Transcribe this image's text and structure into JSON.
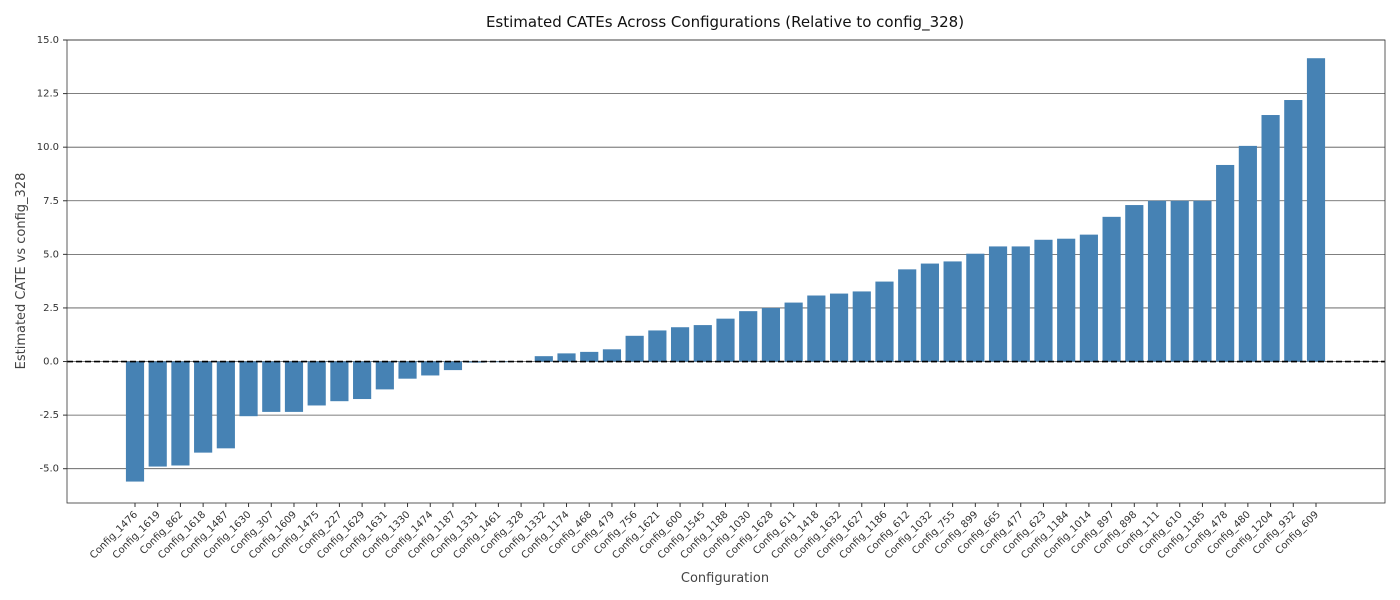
{
  "chart_data": {
    "type": "bar",
    "title": "Estimated CATEs Across Configurations (Relative to config_328)",
    "xlabel": "Configuration",
    "ylabel": "Estimated CATE vs config_328",
    "color": "#4682b4",
    "grid": true,
    "reference_line": 0,
    "ylim": [
      -6.6,
      15.0
    ],
    "yticks": [
      {
        "value": -5,
        "label": "-5.0"
      },
      {
        "value": -2.5,
        "label": "-2.5"
      },
      {
        "value": 0,
        "label": "0.0"
      },
      {
        "value": 2.5,
        "label": "2.5"
      },
      {
        "value": 5,
        "label": "5.0"
      },
      {
        "value": 7.5,
        "label": "7.5"
      },
      {
        "value": 10,
        "label": "10.0"
      },
      {
        "value": 12.5,
        "label": "12.5"
      },
      {
        "value": 15,
        "label": "15.0"
      }
    ],
    "categories": [
      "Config_1476",
      "Config_1619",
      "Config_862",
      "Config_1618",
      "Config_1487",
      "Config_1630",
      "Config_307",
      "Config_1609",
      "Config_1475",
      "Config_227",
      "Config_1629",
      "Config_1631",
      "Config_1330",
      "Config_1474",
      "Config_1187",
      "Config_1331",
      "Config_1461",
      "Config_328",
      "Config_1332",
      "Config_1174",
      "Config_468",
      "Config_479",
      "Config_756",
      "Config_1621",
      "Config_600",
      "Config_1545",
      "Config_1188",
      "Config_1030",
      "Config_1628",
      "Config_611",
      "Config_1418",
      "Config_1632",
      "Config_1627",
      "Config_1186",
      "Config_612",
      "Config_1032",
      "Config_755",
      "Config_899",
      "Config_665",
      "Config_477",
      "Config_623",
      "Config_1184",
      "Config_1014",
      "Config_897",
      "Config_898",
      "Config_111",
      "Config_610",
      "Config_1185",
      "Config_478",
      "Config_480",
      "Config_1204",
      "Config_932",
      "Config_609"
    ],
    "values": [
      -5.6,
      -4.9,
      -4.85,
      -4.25,
      -4.05,
      -2.55,
      -2.35,
      -2.35,
      -2.05,
      -1.85,
      -1.75,
      -1.3,
      -0.8,
      -0.65,
      -0.4,
      -0.05,
      -0.03,
      0,
      0.25,
      0.38,
      0.45,
      0.57,
      1.2,
      1.45,
      1.6,
      1.7,
      2.0,
      2.35,
      2.5,
      2.75,
      3.08,
      3.17,
      3.27,
      3.73,
      4.3,
      4.57,
      4.67,
      5.03,
      5.37,
      5.37,
      5.68,
      5.73,
      5.92,
      6.75,
      7.3,
      7.5,
      7.5,
      7.5,
      9.17,
      10.06,
      11.5,
      12.2,
      14.15
    ]
  }
}
